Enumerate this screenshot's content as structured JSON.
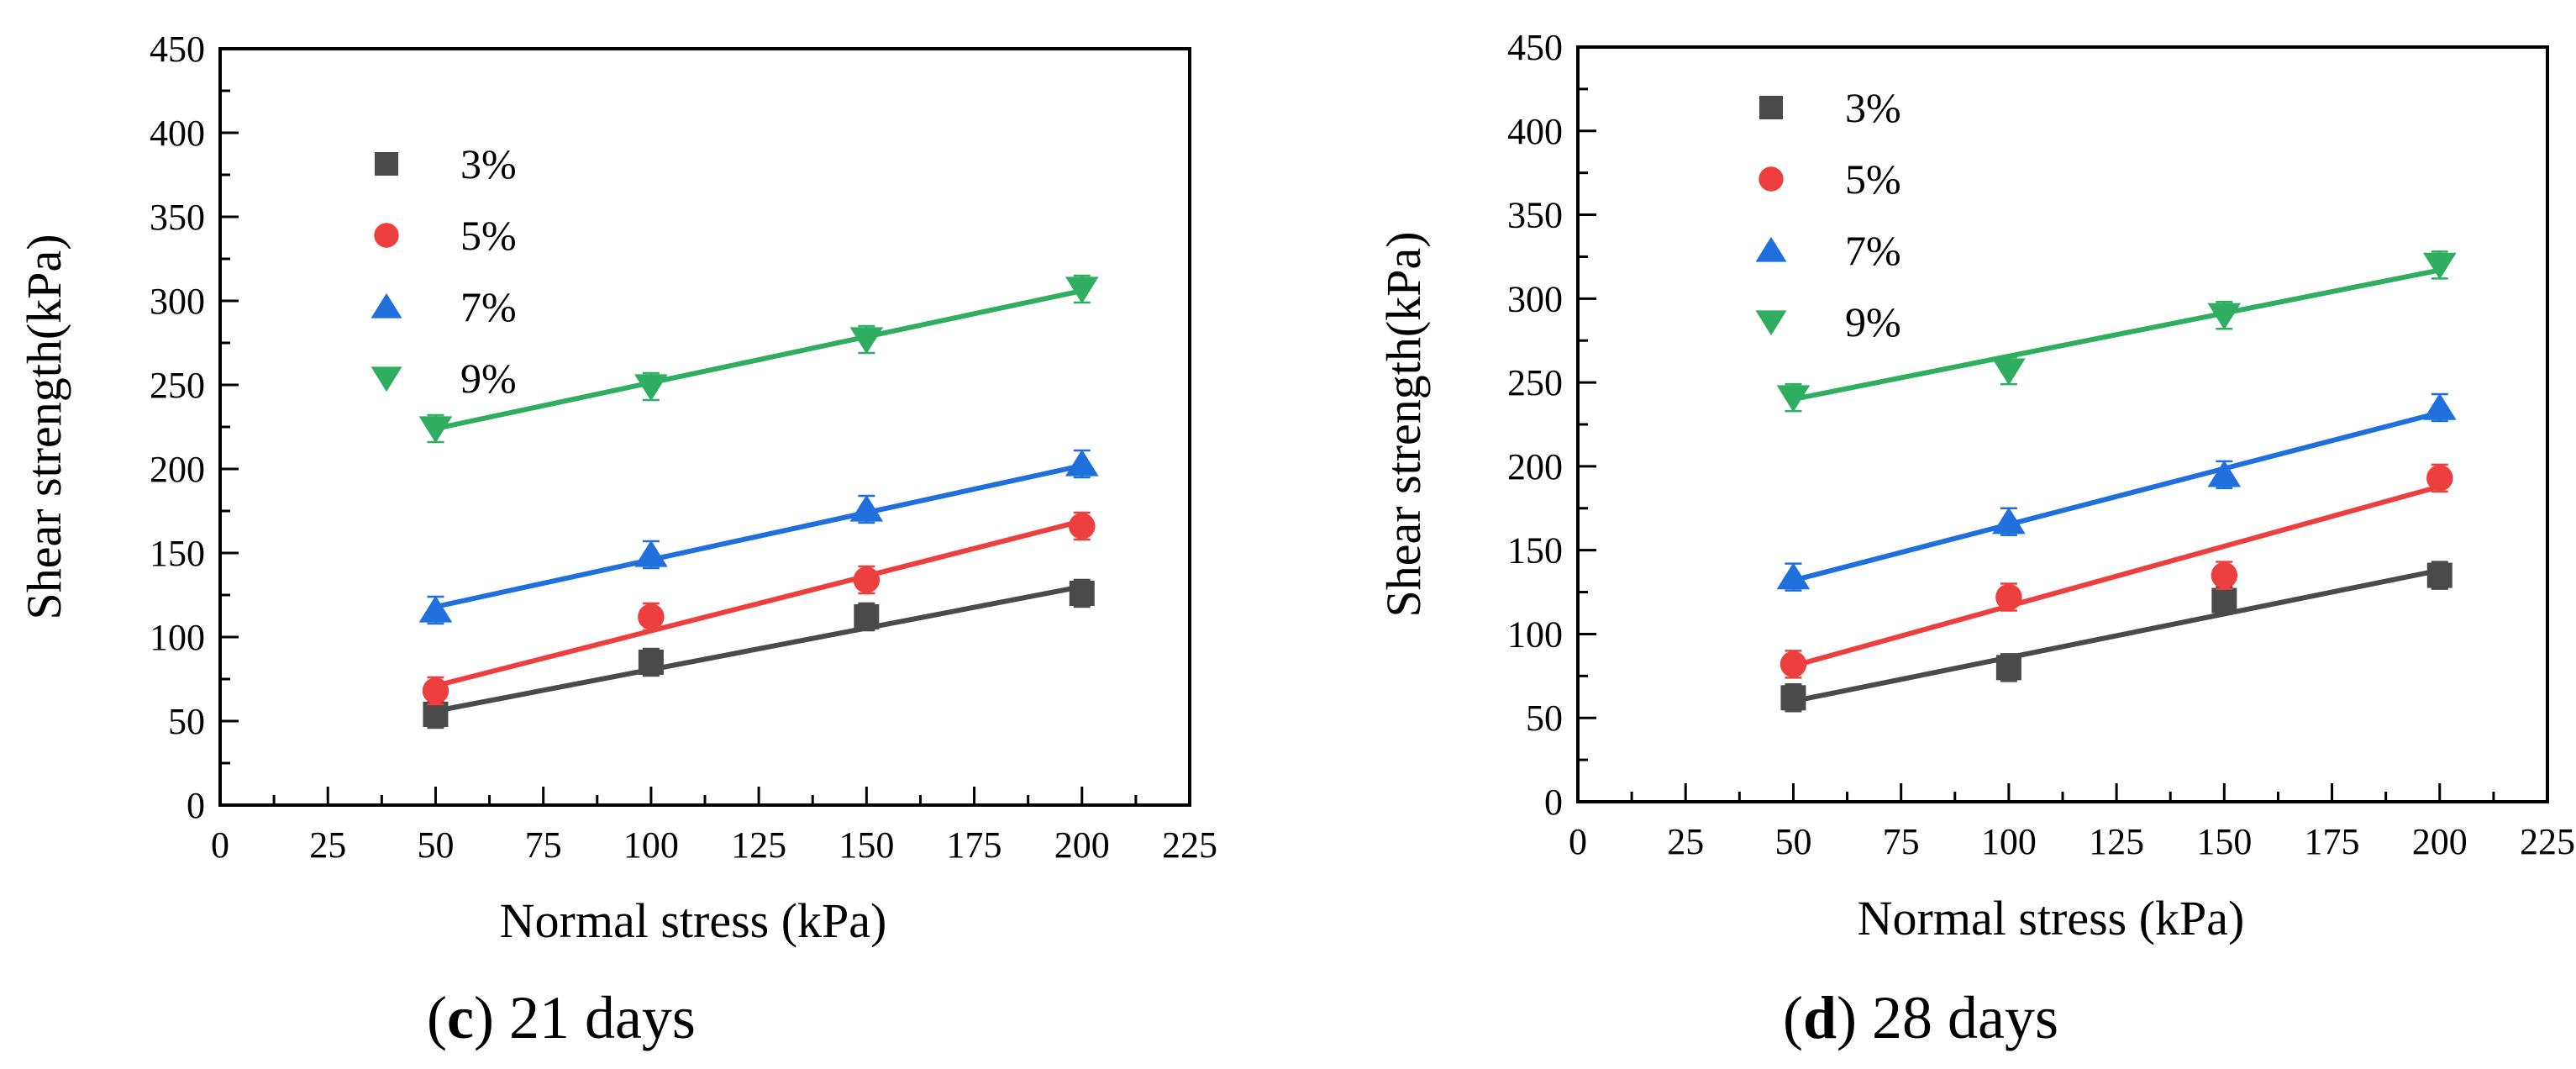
{
  "chart_data": [
    {
      "type": "scatter",
      "panel_label": "c",
      "caption_text": " 21 days",
      "xlabel": "Normal stress (kPa)",
      "ylabel": "Shear strength(kPa)",
      "xlim": [
        0,
        225
      ],
      "ylim": [
        0,
        450
      ],
      "x_ticks": [
        "0",
        "25",
        "50",
        "75",
        "100",
        "125",
        "150",
        "175",
        "200",
        "225"
      ],
      "y_ticks": [
        "0",
        "50",
        "100",
        "150",
        "200",
        "250",
        "300",
        "350",
        "400",
        "450"
      ],
      "x_tick_values": [
        0,
        25,
        50,
        75,
        100,
        125,
        150,
        175,
        200,
        225
      ],
      "y_tick_values": [
        0,
        50,
        100,
        150,
        200,
        250,
        300,
        350,
        400,
        450
      ],
      "legend_position": "upper-left",
      "x": [
        50,
        100,
        150,
        200
      ],
      "series": [
        {
          "name": "3%",
          "marker": "square",
          "color": "#4a4a4a",
          "values": [
            54,
            85,
            112,
            126
          ],
          "fit_start": 56,
          "fit_end": 130
        },
        {
          "name": "5%",
          "marker": "circle",
          "color": "#ee3f3f",
          "values": [
            68,
            112,
            134,
            166
          ],
          "fit_start": 71,
          "fit_end": 169
        },
        {
          "name": "7%",
          "marker": "triangle-up",
          "color": "#1f6fdc",
          "values": [
            116,
            149,
            176,
            203
          ],
          "fit_start": 118,
          "fit_end": 202
        },
        {
          "name": "9%",
          "marker": "triangle-down",
          "color": "#2fae62",
          "values": [
            224,
            249,
            277,
            307
          ],
          "fit_start": 224,
          "fit_end": 306
        }
      ]
    },
    {
      "type": "scatter",
      "panel_label": "d",
      "caption_text": " 28 days",
      "xlabel": "Normal stress (kPa)",
      "ylabel": "Shear strength(kPa)",
      "xlim": [
        0,
        225
      ],
      "ylim": [
        0,
        450
      ],
      "x_ticks": [
        "0",
        "25",
        "50",
        "75",
        "100",
        "125",
        "150",
        "175",
        "200",
        "225"
      ],
      "y_ticks": [
        "0",
        "50",
        "100",
        "150",
        "200",
        "250",
        "300",
        "350",
        "400",
        "450"
      ],
      "x_tick_values": [
        0,
        25,
        50,
        75,
        100,
        125,
        150,
        175,
        200,
        225
      ],
      "y_tick_values": [
        0,
        50,
        100,
        150,
        200,
        250,
        300,
        350,
        400,
        450
      ],
      "legend_position": "upper-left",
      "x": [
        50,
        100,
        150,
        200
      ],
      "series": [
        {
          "name": "3%",
          "marker": "square",
          "color": "#4a4a4a",
          "values": [
            62,
            80,
            120,
            135
          ],
          "fit_start": 60,
          "fit_end": 138
        },
        {
          "name": "5%",
          "marker": "circle",
          "color": "#ee3f3f",
          "values": [
            82,
            122,
            135,
            193
          ],
          "fit_start": 81,
          "fit_end": 188
        },
        {
          "name": "7%",
          "marker": "triangle-up",
          "color": "#1f6fdc",
          "values": [
            134,
            167,
            195,
            235
          ],
          "fit_start": 132,
          "fit_end": 232
        },
        {
          "name": "9%",
          "marker": "triangle-down",
          "color": "#2fae62",
          "values": [
            241,
            257,
            290,
            320
          ],
          "fit_start": 240,
          "fit_end": 317
        }
      ]
    }
  ]
}
